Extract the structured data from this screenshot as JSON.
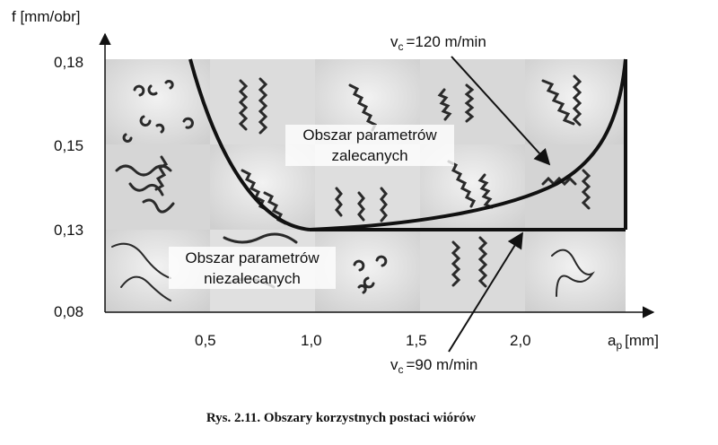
{
  "y_axis": {
    "title": "f [mm/obr]",
    "ticks": [
      "0,18",
      "0,15",
      "0,13",
      "0,08"
    ]
  },
  "x_axis": {
    "title_letter": "a",
    "title_subscript": "p",
    "title_unit": "[mm]",
    "ticks": [
      "0,5",
      "1,0",
      "1,5",
      "2,0"
    ]
  },
  "labels": {
    "vc_letter": "v",
    "vc_subscript": "c",
    "vc_120": "=120 m/min",
    "vc_90": "=90 m/min",
    "recommended_line1": "Obszar parametrów",
    "recommended_line2": "zalecanych",
    "not_recommended_line1": "Obszar parametrów",
    "not_recommended_line2": "niezalecanych"
  },
  "caption": "Rys. 2.11. Obszary korzystnych postaci wiórów",
  "colors": {
    "curve": "#111111",
    "cell_light": "#e4e4e4",
    "cell_mid": "#d2d2d2",
    "chip": "#2a2a2a"
  }
}
